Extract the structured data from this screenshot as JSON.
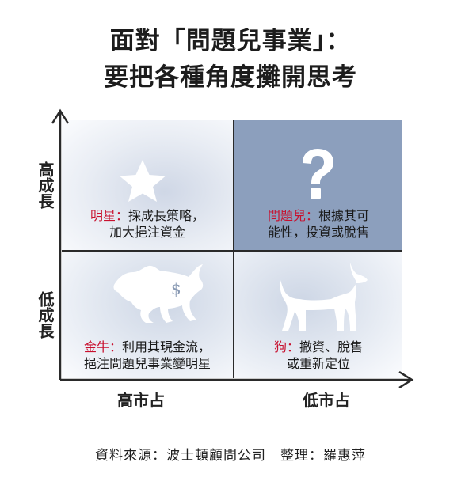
{
  "title": {
    "line1": "面對「問題兒事業」：",
    "line2": "要把各種角度攤開思考"
  },
  "axes": {
    "y_high": "高成長",
    "y_low": "低成長",
    "x_high": "高市占",
    "x_low": "低市占"
  },
  "quadrants": {
    "star": {
      "name": "明星：",
      "line1_rest": "採成長策略，",
      "line2": "加大挹注資金",
      "icon": "star-icon"
    },
    "question": {
      "name": "問題兒：",
      "line1_rest": "根據其可",
      "line2": "能性，投資或脫售",
      "icon": "question-mark-icon"
    },
    "cow": {
      "name": "金牛：",
      "line1_rest": "利用其現金流，",
      "line2": "挹注問題兒事業變明星",
      "icon": "bull-icon"
    },
    "dog": {
      "name": "狗：",
      "line1_rest": "撤資、脫售",
      "line2": "或重新定位",
      "icon": "dog-icon"
    }
  },
  "source": "資料來源：波士頓顧問公司　整理：羅惠萍",
  "colors": {
    "highlight_quadrant": "#8c9fbd",
    "accent_red": "#c8102e"
  }
}
